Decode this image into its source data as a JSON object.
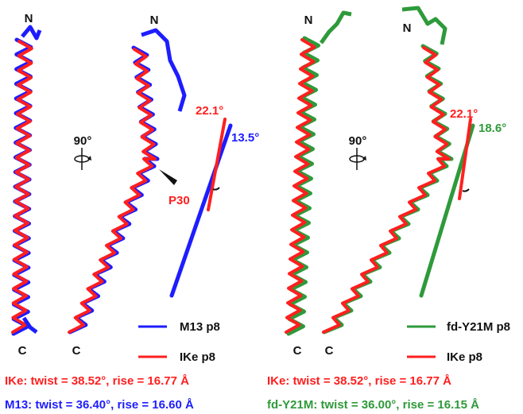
{
  "colors": {
    "ike": "#ff1f1f",
    "m13": "#1d1dff",
    "fd": "#2e9a3a",
    "text": "#111111"
  },
  "left_panel": {
    "terminus_n_front": "N",
    "terminus_n_rot": "N",
    "terminus_c_front": "C",
    "terminus_c_rot": "C",
    "rotation_label": "90°",
    "proline_label": "P30",
    "angle_ike": "22.1°",
    "angle_m13": "13.5°",
    "legend": [
      {
        "label": "M13 p8",
        "color": "#1d1dff"
      },
      {
        "label": "IKe p8",
        "color": "#ff1f1f"
      }
    ],
    "stat_ike": "IKe: twist = 38.52°, rise = 16.77 Å",
    "stat_m13": "M13: twist = 36.40°, rise = 16.60 Å"
  },
  "right_panel": {
    "terminus_n_front": "N",
    "terminus_n_rot": "N",
    "terminus_c_front": "C",
    "terminus_c_rot": "C",
    "rotation_label": "90°",
    "angle_ike": "22.1°",
    "angle_fd": "18.6°",
    "legend": [
      {
        "label": "fd-Y21M p8",
        "color": "#2e9a3a"
      },
      {
        "label": "IKe p8",
        "color": "#ff1f1f"
      }
    ],
    "stat_ike": "IKe: twist = 38.52°, rise = 16.77 Å",
    "stat_fd": "fd-Y21M: twist = 36.00°, rise = 16.15 Å"
  }
}
